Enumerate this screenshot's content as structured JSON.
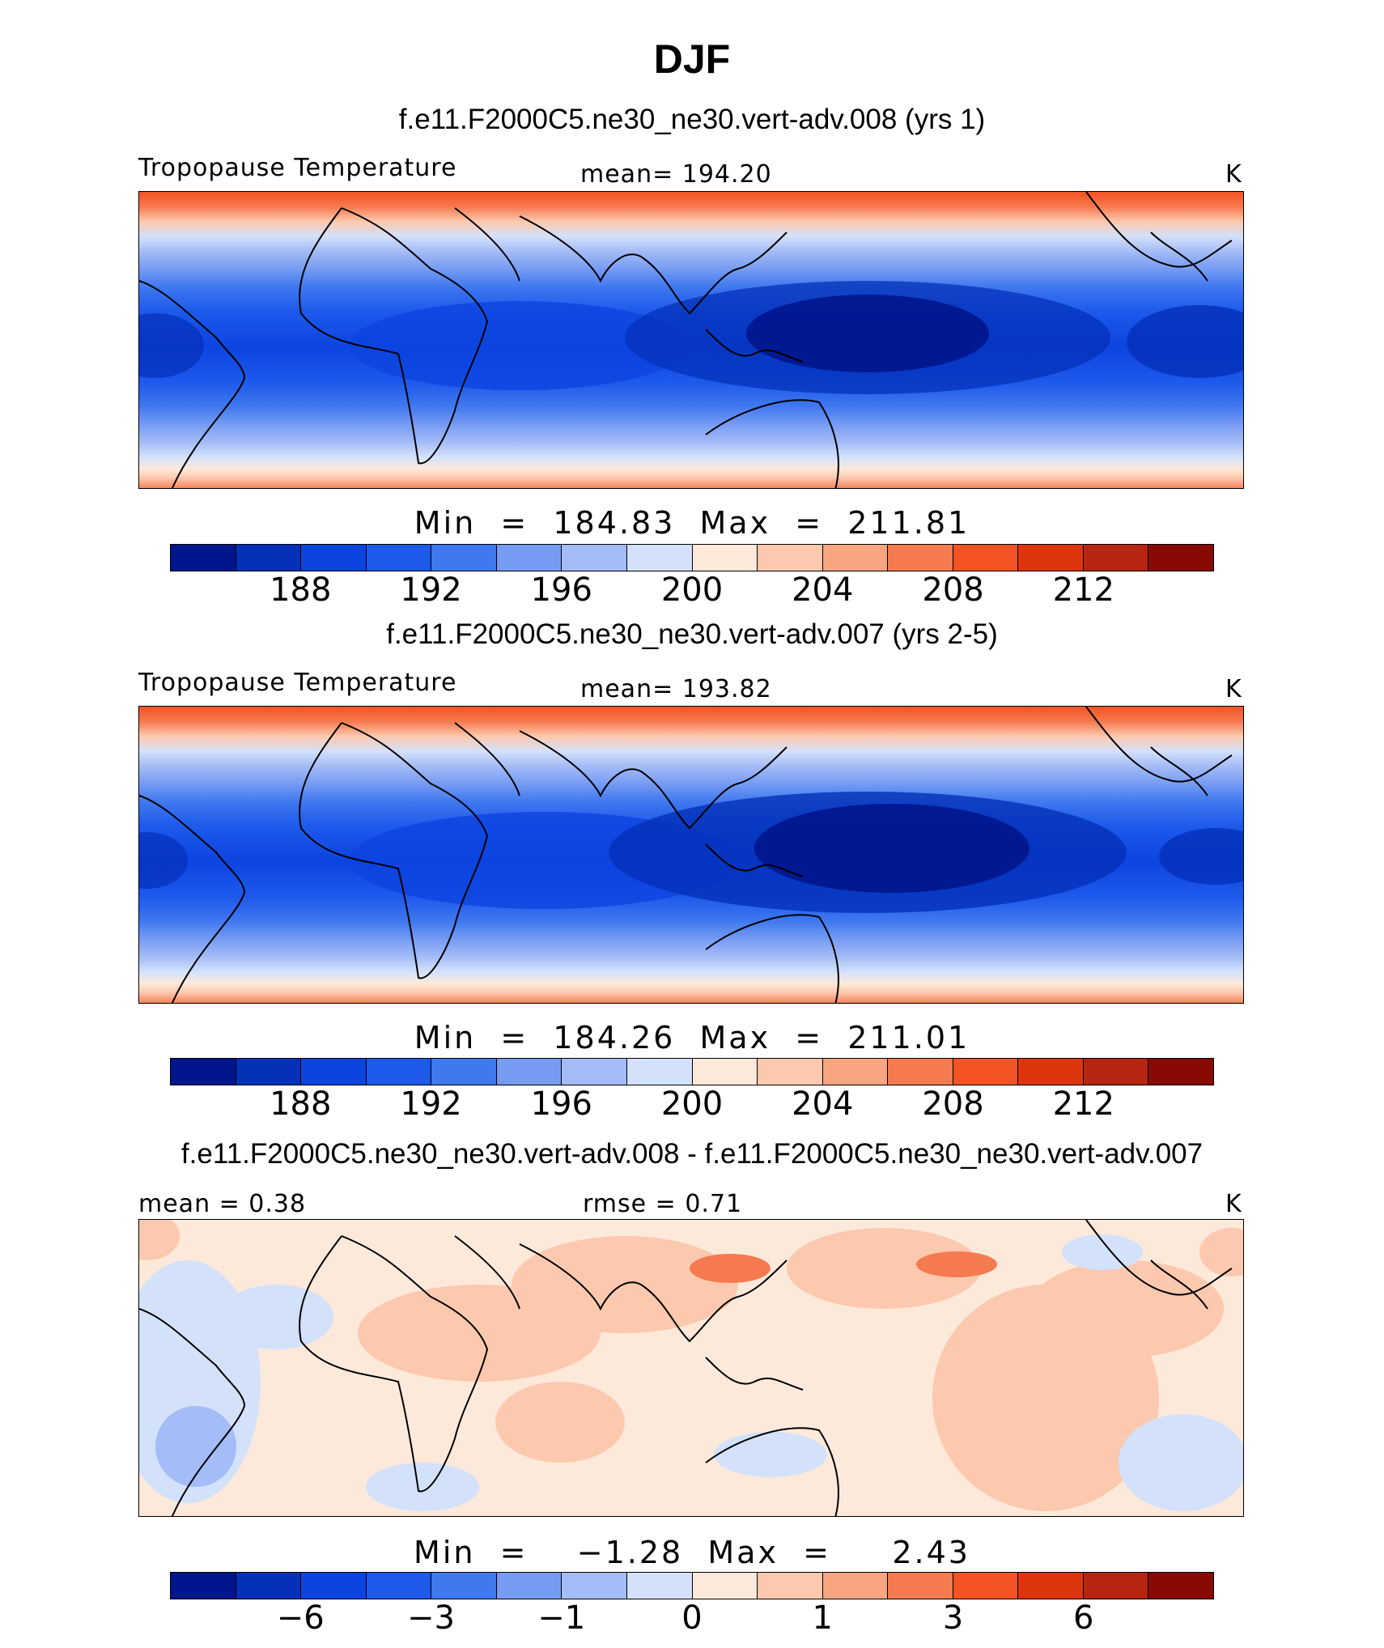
{
  "figure": {
    "title": "DJF",
    "units": "K"
  },
  "colors": {
    "palette": [
      "#00168c",
      "#0431b8",
      "#0c44e0",
      "#1d5aec",
      "#3f78ef",
      "#759bf3",
      "#a4bcf7",
      "#d3e1fb",
      "#fde9da",
      "#fcc9ae",
      "#f8a582",
      "#f67a4f",
      "#f45324",
      "#de350e",
      "#b52510",
      "#870a04"
    ],
    "outline": "#000000",
    "land_line": "#000000"
  },
  "chart_data": [
    {
      "type": "heatmap",
      "subtitle": "f.e11.F2000C5.ne30_ne30.vert-adv.008 (yrs 1)",
      "variable": "Tropopause Temperature",
      "stat_left": "Tropopause Temperature",
      "stat_center": "mean=  194.20",
      "units": "K",
      "mean": 194.2,
      "min": 184.83,
      "max": 211.81,
      "minmax_text": "Min  =  184.83  Max  =  211.81",
      "levels": [
        186,
        188,
        190,
        192,
        194,
        196,
        198,
        200,
        202,
        204,
        206,
        208,
        210,
        212,
        214
      ],
      "tick_labels": [
        "188",
        "192",
        "196",
        "200",
        "204",
        "208",
        "212"
      ]
    },
    {
      "type": "heatmap",
      "subtitle": "f.e11.F2000C5.ne30_ne30.vert-adv.007 (yrs 2-5)",
      "variable": "Tropopause Temperature",
      "stat_left": "Tropopause Temperature",
      "stat_center": "mean=  193.82",
      "units": "K",
      "mean": 193.82,
      "min": 184.26,
      "max": 211.01,
      "minmax_text": "Min  =  184.26  Max  =  211.01",
      "levels": [
        186,
        188,
        190,
        192,
        194,
        196,
        198,
        200,
        202,
        204,
        206,
        208,
        210,
        212,
        214
      ],
      "tick_labels": [
        "188",
        "192",
        "196",
        "200",
        "204",
        "208",
        "212"
      ]
    },
    {
      "type": "heatmap",
      "subtitle": "f.e11.F2000C5.ne30_ne30.vert-adv.008 - f.e11.F2000C5.ne30_ne30.vert-adv.007",
      "stat_left": "mean =    0.38",
      "stat_center": "rmse =    0.71",
      "units": "K",
      "mean": 0.38,
      "rmse": 0.71,
      "min": -1.28,
      "max": 2.43,
      "minmax_text": "Min  =    −1.28  Max  =     2.43",
      "levels": [
        -8,
        -6,
        -4,
        -3,
        -2,
        -1,
        -0.5,
        0,
        0.5,
        1,
        2,
        3,
        4,
        6,
        8
      ],
      "tick_labels": [
        "−6",
        "−3",
        "−1",
        "0",
        "1",
        "3",
        "6"
      ]
    }
  ]
}
